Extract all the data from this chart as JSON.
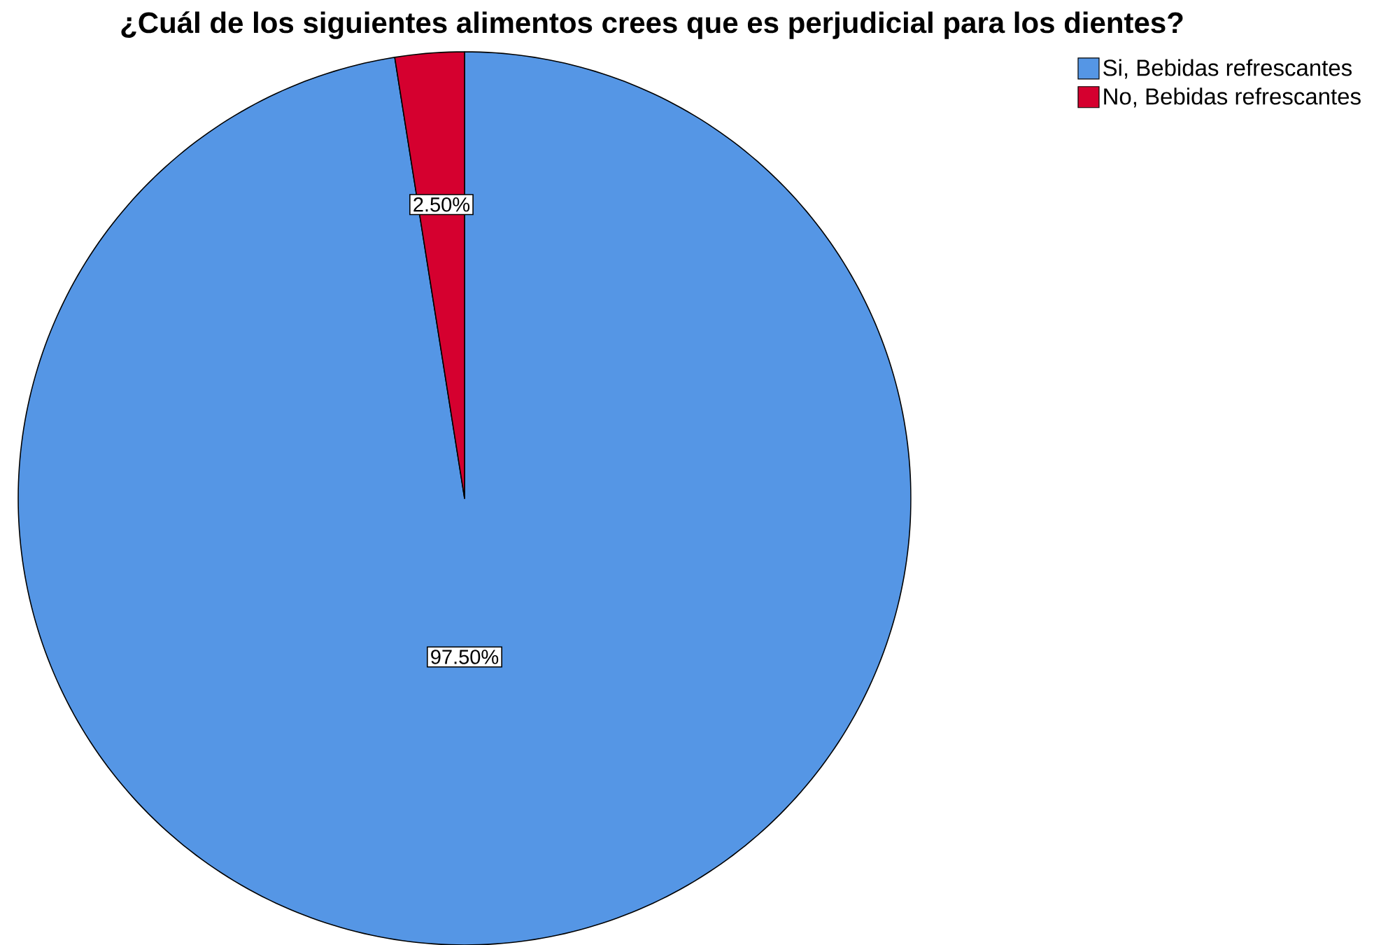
{
  "chart_data": {
    "type": "pie",
    "title": "¿Cuál de los siguientes alimentos crees que es perjudicial para los dientes?",
    "categories": [
      "Si, Bebidas refrescantes",
      "No, Bebidas refrescantes"
    ],
    "values": [
      97.5,
      2.5
    ],
    "colors": [
      "#5596e5",
      "#d5002f"
    ],
    "value_labels": [
      "97.50%",
      "2.50%"
    ],
    "legend": "top right"
  }
}
